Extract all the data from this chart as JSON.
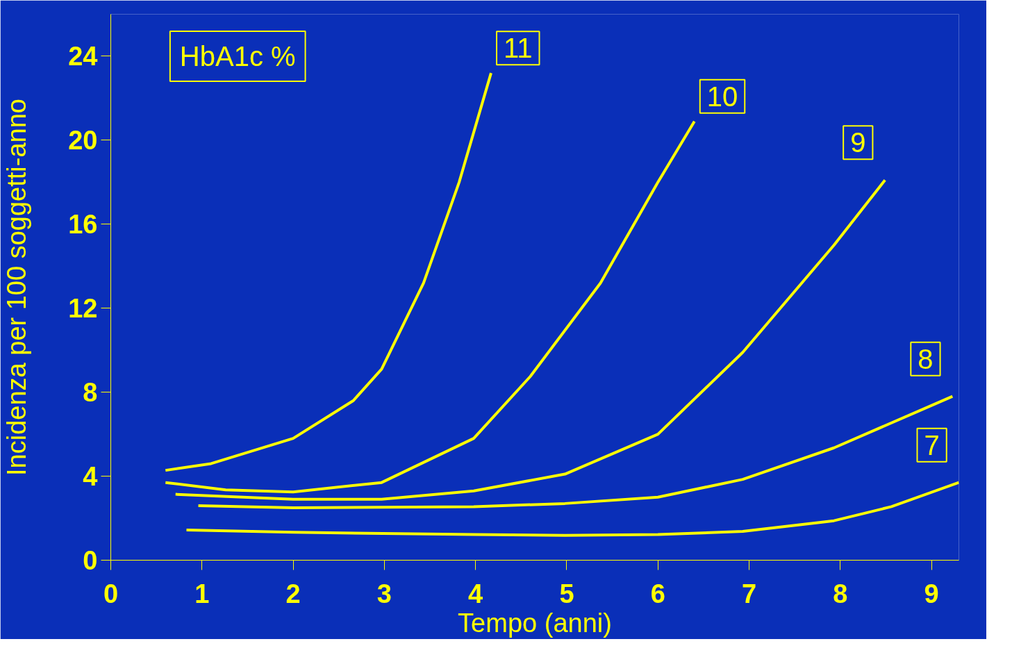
{
  "chart_data": {
    "type": "line",
    "xlabel": "Tempo (anni)",
    "ylabel": "Incidenza per 100 soggetti-anno",
    "legend_title": "HbA1c %",
    "xlim": [
      0,
      9.3
    ],
    "ylim": [
      0,
      26
    ],
    "xticks": [
      0,
      1,
      2,
      3,
      4,
      5,
      6,
      7,
      8,
      9
    ],
    "yticks": [
      0,
      4,
      8,
      12,
      16,
      20,
      24
    ],
    "grid": false,
    "marker": "none",
    "line_style": "solid",
    "series": [
      {
        "name": "11",
        "color": "#ffff00",
        "x": [
          0.6,
          1.1,
          2.0,
          2.66,
          2.97,
          3.43,
          3.82,
          4.17
        ],
        "values": [
          4.28,
          4.6,
          5.8,
          7.6,
          9.1,
          13.2,
          18,
          23.2
        ]
      },
      {
        "name": "10",
        "color": "#ffff00",
        "x": [
          0.6,
          1.26,
          2.0,
          2.97,
          3.98,
          4.6,
          5.37,
          6.0,
          6.4
        ],
        "values": [
          3.7,
          3.35,
          3.25,
          3.7,
          5.8,
          8.75,
          13.2,
          18,
          20.9
        ]
      },
      {
        "name": "9",
        "color": "#ffff00",
        "x": [
          0.71,
          2.0,
          2.97,
          3.98,
          4.98,
          6.0,
          6.93,
          7.93,
          8.49
        ],
        "values": [
          3.14,
          2.9,
          2.9,
          3.3,
          4.1,
          6.0,
          9.9,
          15.0,
          18.1
        ]
      },
      {
        "name": "8",
        "color": "#ffff00",
        "x": [
          0.96,
          2.0,
          3.98,
          4.98,
          6.0,
          6.93,
          7.93,
          9.23
        ],
        "values": [
          2.6,
          2.5,
          2.55,
          2.7,
          3.0,
          3.85,
          5.35,
          7.8
        ]
      },
      {
        "name": "7",
        "color": "#ffff00",
        "x": [
          0.83,
          2.0,
          3.98,
          4.98,
          6.0,
          6.93,
          7.93,
          8.56,
          9.3
        ],
        "values": [
          1.44,
          1.33,
          1.22,
          1.18,
          1.22,
          1.37,
          1.88,
          2.55,
          3.7
        ]
      }
    ]
  }
}
